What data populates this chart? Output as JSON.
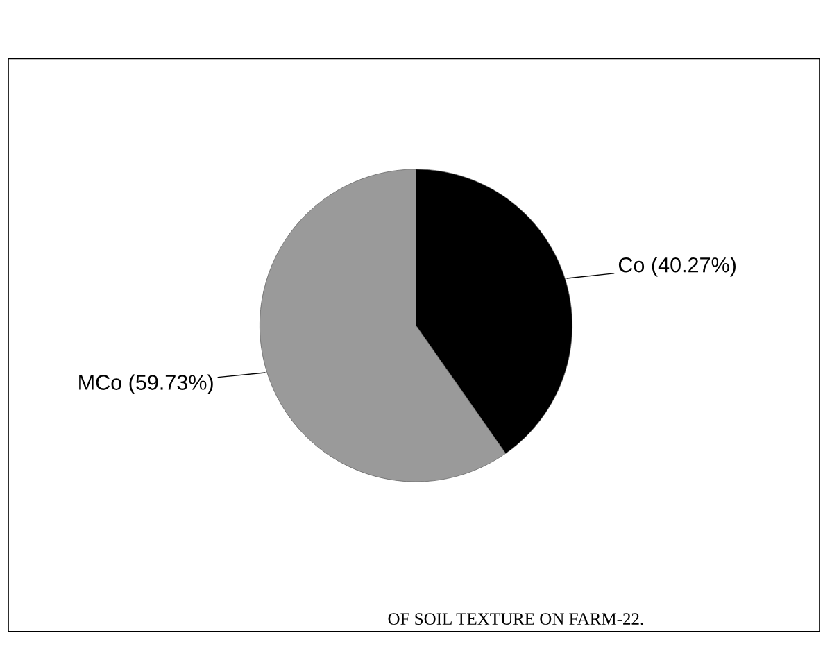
{
  "chart_data": {
    "type": "pie",
    "categories": [
      "Co (40.27%)",
      "MCo (59.73%)"
    ],
    "values": [
      40.27,
      59.73
    ],
    "colors": [
      "#000000",
      "#9a9a9a"
    ],
    "annotations": [
      "OF SOIL TEXTURE ON FARM-22."
    ]
  }
}
